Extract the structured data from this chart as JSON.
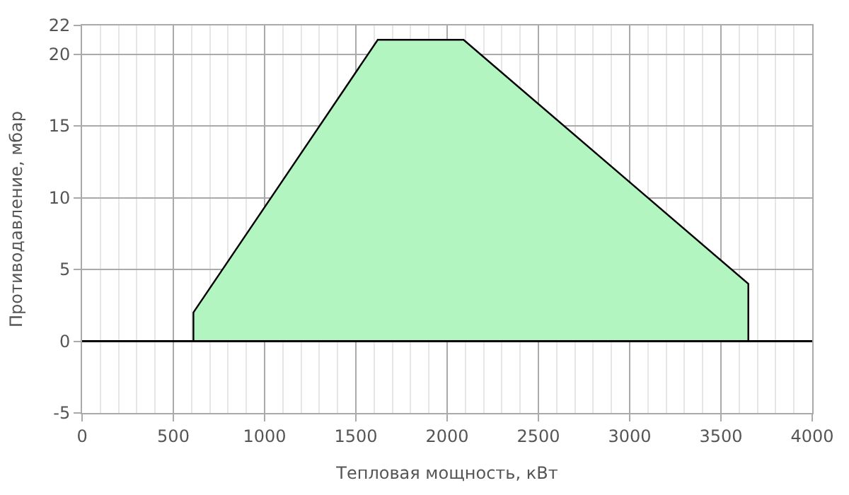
{
  "chart_data": {
    "type": "area",
    "xlabel": "Тепловая мощность, кВт",
    "ylabel": "Противодавление, мбар",
    "series": [
      {
        "color": "#b2f5c0",
        "x": [
          610,
          610,
          1620,
          2090,
          3650,
          3650
        ],
        "values": [
          0,
          2,
          21,
          21,
          4,
          0
        ]
      }
    ],
    "xlim": [
      0,
      4000
    ],
    "xticks": [
      0,
      500,
      1000,
      1500,
      2000,
      2500,
      3000,
      3500,
      4000
    ],
    "ylim": [
      -5,
      22
    ],
    "yticks": [
      -5,
      0,
      5,
      10,
      15,
      20,
      22
    ],
    "ref_lines": [
      {
        "axis": "y",
        "value": 0,
        "color": "#000000"
      }
    ],
    "grid": true
  }
}
